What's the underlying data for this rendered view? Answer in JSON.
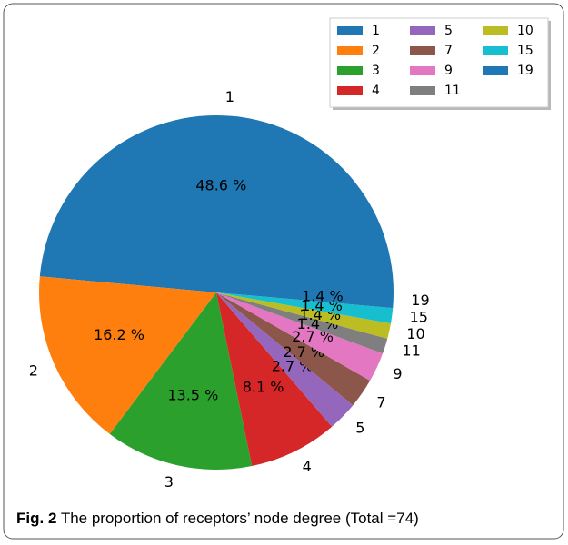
{
  "chart_data": {
    "type": "pie",
    "categories": [
      "1",
      "2",
      "3",
      "4",
      "5",
      "7",
      "9",
      "11",
      "10",
      "15",
      "19"
    ],
    "values": [
      48.6,
      16.2,
      13.5,
      8.1,
      2.7,
      2.7,
      2.7,
      1.4,
      1.4,
      1.4,
      1.4
    ],
    "value_labels": [
      "48.6 %",
      "16.2 %",
      "13.5 %",
      "8.1 %",
      "2.7 %",
      "2.7 %",
      "2.7 %",
      "1.4 %",
      "1.4 %",
      "1.4 %",
      "1.4 %"
    ],
    "colors": [
      "#1f77b4",
      "#ff7f0e",
      "#2ca02c",
      "#d62728",
      "#9467bd",
      "#8c564b",
      "#e377c2",
      "#7f7f7f",
      "#bcbd22",
      "#17becf",
      "#1f77b4"
    ],
    "legend": "upper right"
  },
  "caption": {
    "label": "Fig. 2",
    "text": "The proportion of receptors’ node degree (Total =74)"
  }
}
